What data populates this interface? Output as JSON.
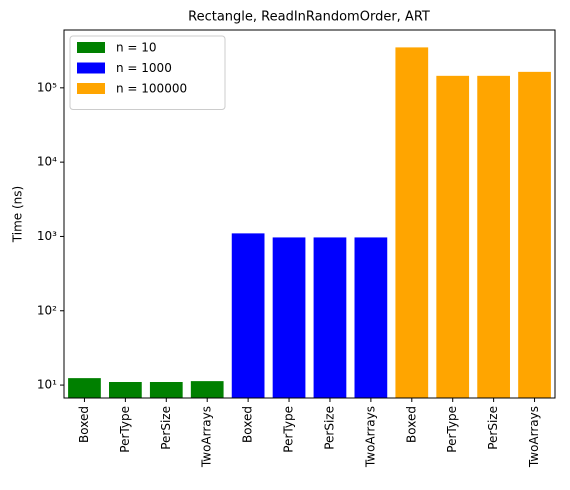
{
  "chart_data": {
    "type": "bar",
    "title": "Rectangle, ReadInRandomOrder, ART",
    "ylabel": "Time (ns)",
    "categories": [
      "Boxed",
      "PerType",
      "PerSize",
      "TwoArrays",
      "Boxed",
      "PerType",
      "PerSize",
      "TwoArrays",
      "Boxed",
      "PerType",
      "PerSize",
      "TwoArrays"
    ],
    "series": [
      {
        "name": "n = 10",
        "color": "#008000",
        "values": [
          12.4,
          11,
          11,
          11.3,
          null,
          null,
          null,
          null,
          null,
          null,
          null,
          null
        ]
      },
      {
        "name": "n = 1000",
        "color": "#0000ff",
        "values": [
          null,
          null,
          null,
          null,
          1100,
          970,
          970,
          970,
          null,
          null,
          null,
          null
        ]
      },
      {
        "name": "n = 100000",
        "color": "#ffa500",
        "values": [
          null,
          null,
          null,
          null,
          null,
          null,
          null,
          null,
          350000,
          145000,
          145000,
          164000
        ]
      }
    ],
    "log_y": true,
    "ylim": [
      6.7,
      600000
    ],
    "yticks": [
      {
        "value": 10,
        "label": "10¹"
      },
      {
        "value": 100,
        "label": "10²"
      },
      {
        "value": 1000,
        "label": "10³"
      },
      {
        "value": 10000,
        "label": "10⁴"
      },
      {
        "value": 100000,
        "label": "10⁵"
      }
    ],
    "legend": "upper left"
  }
}
